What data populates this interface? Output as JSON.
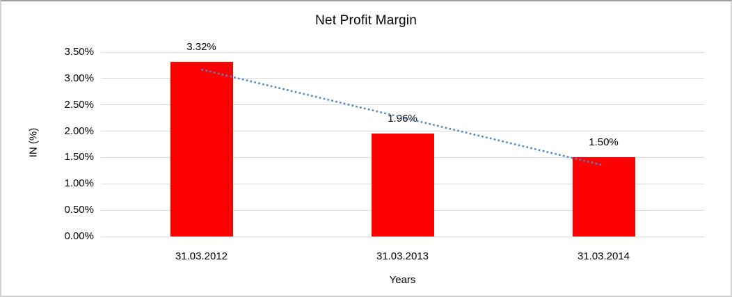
{
  "chart_data": {
    "type": "bar",
    "title": "Net Profit Margin",
    "xlabel": "Years",
    "ylabel": "IN (%)",
    "categories": [
      "31.03.2012",
      "31.03.2013",
      "31.03.2014"
    ],
    "values": [
      3.32,
      1.96,
      1.5
    ],
    "data_labels": [
      "3.32%",
      "1.96%",
      "1.50%"
    ],
    "ylim": [
      0,
      3.5
    ],
    "ytick_step": 0.5,
    "yticks": [
      "0.00%",
      "0.50%",
      "1.00%",
      "1.50%",
      "2.00%",
      "2.50%",
      "3.00%",
      "3.50%"
    ],
    "grid": true,
    "legend": "none",
    "bar_color": "#FF0000",
    "gridline_color": "#D9D9D9",
    "text_color": "#000000",
    "trendline": {
      "style": "dotted",
      "color": "#4E86C8",
      "fit": "linear"
    }
  }
}
